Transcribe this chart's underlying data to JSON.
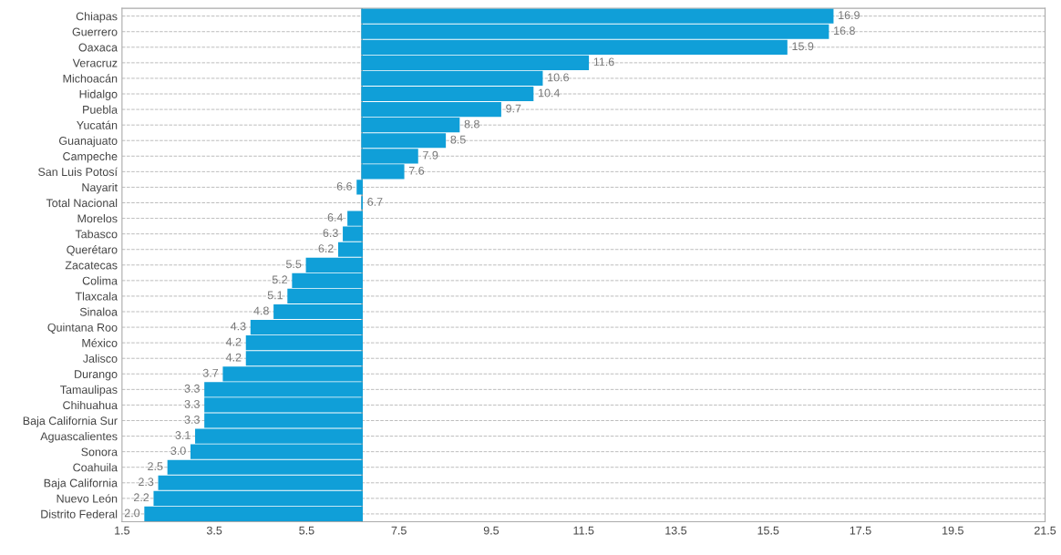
{
  "chart_data": {
    "type": "bar",
    "orientation": "horizontal",
    "categories": [
      "Chiapas",
      "Guerrero",
      "Oaxaca",
      "Veracruz",
      "Michoacán",
      "Hidalgo",
      "Puebla",
      "Yucatán",
      "Guanajuato",
      "Campeche",
      "San Luis Potosí",
      "Nayarit",
      "Total Nacional",
      "Morelos",
      "Tabasco",
      "Querétaro",
      "Zacatecas",
      "Colima",
      "Tlaxcala",
      "Sinaloa",
      "Quintana Roo",
      "México",
      "Jalisco",
      "Durango",
      "Tamaulipas",
      "Chihuahua",
      "Baja California Sur",
      "Aguascalientes",
      "Sonora",
      "Coahuila",
      "Baja California",
      "Nuevo León",
      "Distrito Federal"
    ],
    "base": [
      6.7,
      6.7,
      6.7,
      6.7,
      6.7,
      6.7,
      6.7,
      6.7,
      6.7,
      6.7,
      6.7,
      6.7,
      6.7,
      6.7,
      6.7,
      6.7,
      6.7,
      6.7,
      6.7,
      6.7,
      6.7,
      6.7,
      6.7,
      6.7,
      6.7,
      6.7,
      6.7,
      6.7,
      6.7,
      6.7,
      6.7,
      6.7,
      6.7
    ],
    "values": [
      10.2,
      10.1,
      9.2,
      4.9,
      3.9,
      3.7,
      3.0,
      2.1,
      1.8,
      1.2,
      0.9,
      -0.1,
      0.0,
      -0.3,
      -0.4,
      -0.5,
      -1.2,
      -1.5,
      -1.6,
      -1.9,
      -2.4,
      -2.5,
      -2.5,
      -3.0,
      -3.4,
      -3.4,
      -3.4,
      -3.6,
      -3.7,
      -4.2,
      -4.4,
      -4.5,
      -4.7
    ],
    "value_labels": [
      "16.9",
      "16.8",
      "15.9",
      "11.6",
      "10.6",
      "10.4",
      "9.7",
      "8.8",
      "8.5",
      "7.9",
      "7.6",
      "6.6",
      "6.7",
      "6.4",
      "6.3",
      "6.2",
      "5.5",
      "5.2",
      "5.1",
      "4.8",
      "4.3",
      "4.2",
      "4.2",
      "3.7",
      "3.3",
      "3.3",
      "3.3",
      "3.1",
      "3.0",
      "2.5",
      "2.3",
      "2.2",
      "2.0"
    ],
    "color": "#109fd8",
    "xlim": [
      1.5,
      21.5
    ],
    "xticks": [
      1.5,
      3.5,
      5.5,
      7.5,
      9.5,
      11.5,
      13.5,
      15.5,
      17.5,
      19.5,
      21.5
    ],
    "ref_lines": [
      {
        "axis": "x",
        "value": 6.7,
        "color": "#8a8a8a"
      }
    ],
    "grid": "y"
  }
}
